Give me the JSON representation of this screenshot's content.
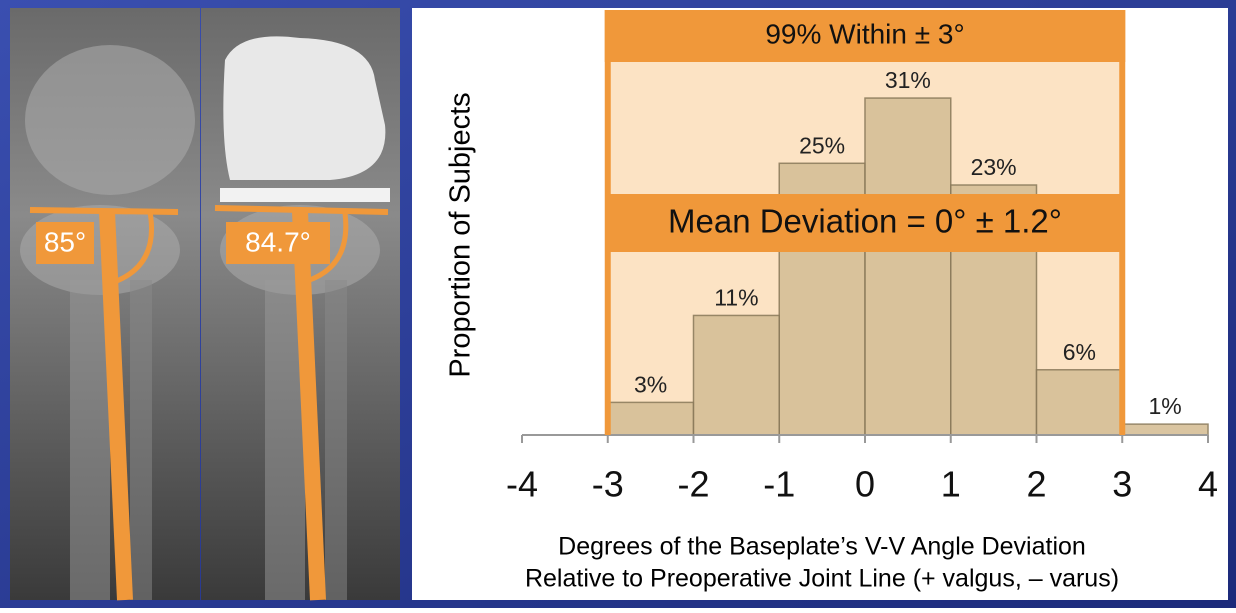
{
  "chart_data": {
    "type": "histogram",
    "title": "99% Within ± 3°",
    "annotation": "Mean Deviation = 0° ± 1.2°",
    "highlight_range": [
      -3,
      3
    ],
    "xlabel": [
      "Degrees of the Baseplate’s V-V Angle Deviation",
      "Relative to Preoperative Joint Line (+ valgus, – varus)"
    ],
    "ylabel": "Proportion of Subjects",
    "bins": [
      -3,
      -2,
      -1,
      0,
      1,
      2,
      3,
      4
    ],
    "values": [
      3,
      11,
      25,
      31,
      23,
      6,
      1
    ],
    "value_labels": [
      "3%",
      "11%",
      "25%",
      "31%",
      "23%",
      "6%",
      "1%"
    ],
    "color": "#d6bf97",
    "xlim": [
      -4,
      4
    ],
    "xticks": [
      -4,
      -3,
      -2,
      -1,
      0,
      1,
      2,
      3,
      4
    ],
    "ylim": [
      0,
      38
    ],
    "image_labels": [
      "85°",
      "84.7°"
    ]
  }
}
